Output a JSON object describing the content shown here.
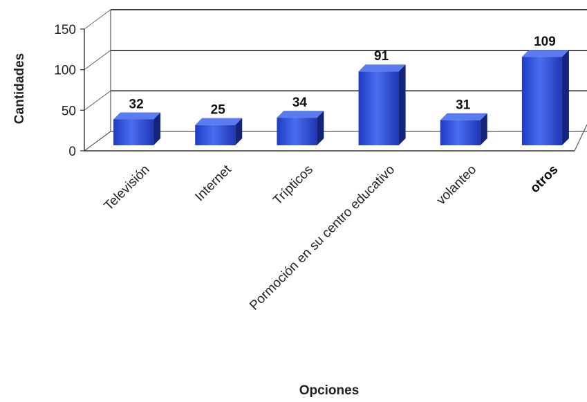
{
  "chart_data": {
    "type": "bar",
    "title": "",
    "xlabel": "Opciones",
    "ylabel": "Cantidades",
    "ylim": [
      0,
      150
    ],
    "yticks": [
      0,
      50,
      100,
      150
    ],
    "categories": [
      "Televisión",
      "Internet",
      "Trípticos",
      "Pormoción en su centro educativo",
      "volanteo",
      "otros"
    ],
    "values": [
      32,
      25,
      34,
      91,
      31,
      109
    ],
    "data_labels": [
      "32",
      "25",
      "34",
      "91",
      "31",
      "109"
    ],
    "bold_categories": [
      "otros"
    ],
    "grid": true,
    "legend": "none",
    "style": "3d-column",
    "colors": {
      "bar": "#2b4fd6",
      "bar_top": "#5a7cf0",
      "bar_side": "#14247a",
      "grid": "#000000"
    }
  }
}
